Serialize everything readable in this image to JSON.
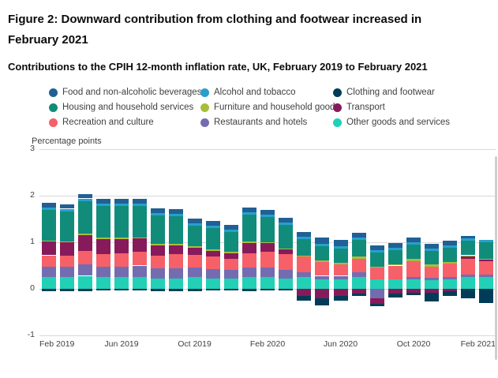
{
  "header": {
    "title": "Figure 2: Downward contribution from clothing and footwear increased in February 2021",
    "subtitle": "Contributions to the CPIH 12-month inflation rate, UK, February 2019 to February 2021"
  },
  "chart_data": {
    "type": "bar",
    "stacked": true,
    "title": "Contributions to the CPIH 12-month inflation rate, UK, February 2019 to February 2021",
    "ylabel": "Percentage points",
    "xlabel": "",
    "ylim": [
      -1,
      3
    ],
    "yticks": [
      3,
      2,
      1,
      0,
      -1
    ],
    "grid": true,
    "legend_position": "top",
    "xtick_indices": [
      0,
      4,
      8,
      12,
      16,
      20,
      24
    ],
    "categories": [
      "Feb 2019",
      "Mar 2019",
      "Apr 2019",
      "May 2019",
      "Jun 2019",
      "Jul 2019",
      "Aug 2019",
      "Sep 2019",
      "Oct 2019",
      "Nov 2019",
      "Dec 2019",
      "Jan 2020",
      "Feb 2020",
      "Mar 2020",
      "Apr 2020",
      "May 2020",
      "Jun 2020",
      "Jul 2020",
      "Aug 2020",
      "Sep 2020",
      "Oct 2020",
      "Nov 2020",
      "Dec 2020",
      "Jan 2021",
      "Feb 2021"
    ],
    "series": [
      {
        "name": "Food and non-alcoholic beverages",
        "color": "#206095",
        "values": [
          0.1,
          0.1,
          0.1,
          0.1,
          0.1,
          0.1,
          0.1,
          0.1,
          0.1,
          0.1,
          0.1,
          0.1,
          0.1,
          0.1,
          0.1,
          0.15,
          0.15,
          0.1,
          0.1,
          0.1,
          0.1,
          0.1,
          0.1,
          0.05,
          0.0
        ]
      },
      {
        "name": "Alcohol and tobacco",
        "color": "#27A0CC",
        "values": [
          0.05,
          0.05,
          0.05,
          0.05,
          0.05,
          0.05,
          0.05,
          0.05,
          0.05,
          0.05,
          0.05,
          0.05,
          0.05,
          0.05,
          0.05,
          0.05,
          0.05,
          0.05,
          0.05,
          0.05,
          0.05,
          0.05,
          0.05,
          0.05,
          0.05
        ]
      },
      {
        "name": "Clothing and footwear",
        "color": "#003C57",
        "values": [
          -0.05,
          -0.05,
          -0.05,
          -0.03,
          -0.03,
          -0.03,
          -0.05,
          -0.05,
          -0.05,
          -0.03,
          -0.03,
          -0.05,
          -0.03,
          -0.03,
          -0.1,
          -0.15,
          -0.1,
          -0.05,
          -0.05,
          -0.08,
          -0.05,
          -0.2,
          -0.1,
          -0.2,
          -0.3
        ]
      },
      {
        "name": "Housing and household services",
        "color": "#118C7B",
        "values": [
          0.65,
          0.65,
          0.7,
          0.68,
          0.68,
          0.68,
          0.62,
          0.6,
          0.45,
          0.45,
          0.42,
          0.58,
          0.55,
          0.5,
          0.35,
          0.3,
          0.3,
          0.35,
          0.3,
          0.3,
          0.3,
          0.28,
          0.3,
          0.32,
          0.35
        ]
      },
      {
        "name": "Furniture and household goods",
        "color": "#A8BD3A",
        "values": [
          0.02,
          0.02,
          0.03,
          0.03,
          0.03,
          0.02,
          0.02,
          0.02,
          0.03,
          0.03,
          0.03,
          0.03,
          0.02,
          0.02,
          0.02,
          0.03,
          0.03,
          0.05,
          0.03,
          0.03,
          0.05,
          0.05,
          0.03,
          0.02,
          0.03
        ]
      },
      {
        "name": "Transport",
        "color": "#871A5B",
        "values": [
          0.3,
          0.28,
          0.35,
          0.32,
          0.3,
          0.28,
          0.22,
          0.2,
          0.15,
          0.12,
          0.12,
          0.22,
          0.18,
          0.1,
          -0.15,
          -0.2,
          -0.15,
          -0.1,
          -0.12,
          -0.1,
          -0.08,
          -0.08,
          -0.05,
          0.05,
          0.02
        ]
      },
      {
        "name": "Recreation and culture",
        "color": "#F66068",
        "values": [
          0.25,
          0.25,
          0.28,
          0.28,
          0.3,
          0.3,
          0.28,
          0.3,
          0.28,
          0.28,
          0.25,
          0.32,
          0.35,
          0.35,
          0.35,
          0.3,
          0.25,
          0.3,
          0.25,
          0.3,
          0.35,
          0.25,
          0.3,
          0.35,
          0.3
        ]
      },
      {
        "name": "Restaurants and hotels",
        "color": "#746CB1",
        "values": [
          0.22,
          0.22,
          0.25,
          0.22,
          0.22,
          0.25,
          0.22,
          0.22,
          0.2,
          0.2,
          0.18,
          0.2,
          0.2,
          0.18,
          0.1,
          0.08,
          0.08,
          0.1,
          -0.2,
          0.0,
          0.05,
          0.05,
          0.05,
          0.05,
          0.05
        ]
      },
      {
        "name": "Other goods and services",
        "color": "#22D0B6",
        "values": [
          0.25,
          0.25,
          0.28,
          0.25,
          0.25,
          0.25,
          0.22,
          0.22,
          0.25,
          0.22,
          0.22,
          0.25,
          0.25,
          0.22,
          0.25,
          0.2,
          0.2,
          0.25,
          0.2,
          0.2,
          0.2,
          0.18,
          0.2,
          0.25,
          0.25
        ]
      }
    ]
  }
}
